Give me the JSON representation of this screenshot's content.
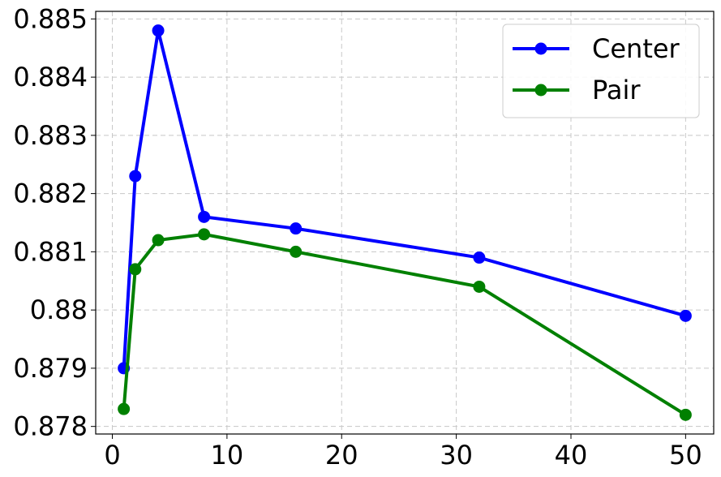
{
  "chart_data": {
    "type": "line",
    "x": [
      1,
      2,
      4,
      8,
      16,
      32,
      50
    ],
    "series": [
      {
        "name": "Center",
        "color": "#0000ff",
        "values": [
          0.879,
          0.8823,
          0.8848,
          0.8816,
          0.8814,
          0.8809,
          0.8799
        ]
      },
      {
        "name": "Pair",
        "color": "#008000",
        "values": [
          0.8783,
          0.8807,
          0.8812,
          0.8813,
          0.881,
          0.8804,
          0.8782
        ]
      }
    ],
    "xlim": [
      -1.45,
      52.45
    ],
    "ylim": [
      0.87787,
      0.88513
    ],
    "xticks": [
      0,
      10,
      20,
      30,
      40,
      50
    ],
    "yticks": [
      0.878,
      0.879,
      0.88,
      0.881,
      0.882,
      0.883,
      0.884,
      0.885
    ],
    "grid": true,
    "legend": "upper right"
  }
}
